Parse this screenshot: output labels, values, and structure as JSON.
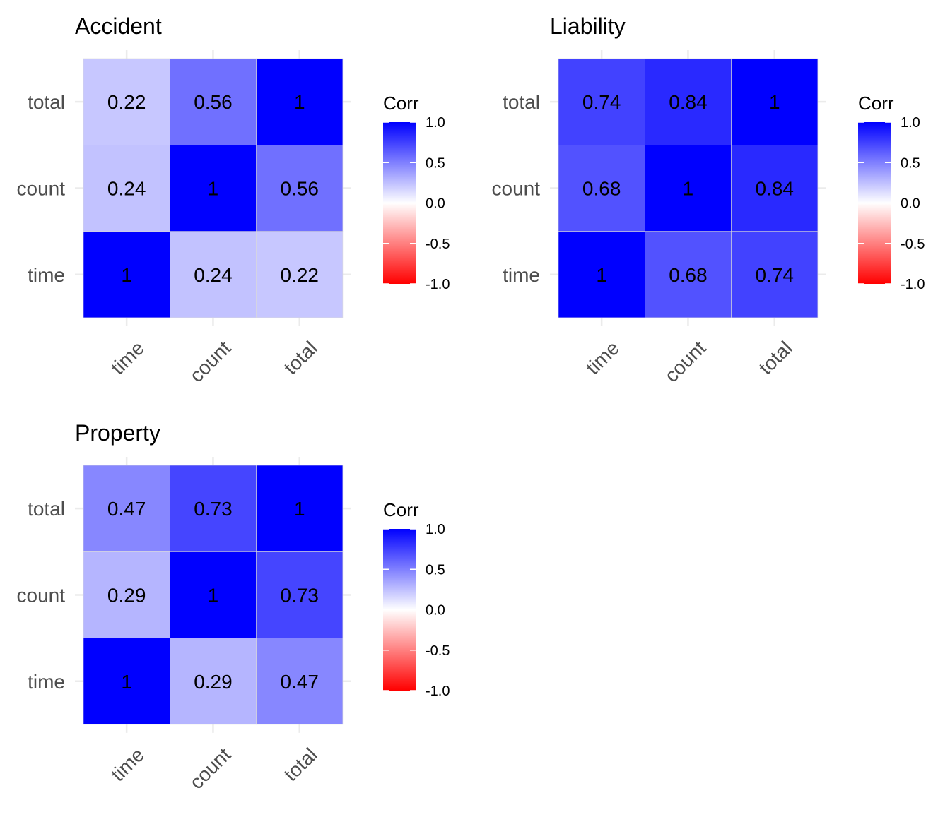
{
  "chart_data": [
    {
      "type": "heatmap",
      "title": "Accident",
      "x_categories": [
        "time",
        "count",
        "total"
      ],
      "y_categories": [
        "time",
        "count",
        "total"
      ],
      "values": [
        [
          1,
          0.24,
          0.22
        ],
        [
          0.24,
          1,
          0.56
        ],
        [
          0.22,
          0.56,
          1
        ]
      ],
      "labels": [
        [
          "1",
          "0.24",
          "0.22"
        ],
        [
          "0.24",
          "1",
          "0.56"
        ],
        [
          "0.22",
          "0.56",
          "1"
        ]
      ],
      "legend": {
        "title": "Corr",
        "ticks": [
          "1.0",
          "0.5",
          "0.0",
          "-0.5",
          "-1.0"
        ],
        "range": [
          -1,
          1
        ]
      }
    },
    {
      "type": "heatmap",
      "title": "Liability",
      "x_categories": [
        "time",
        "count",
        "total"
      ],
      "y_categories": [
        "time",
        "count",
        "total"
      ],
      "values": [
        [
          1,
          0.68,
          0.74
        ],
        [
          0.68,
          1,
          0.84
        ],
        [
          0.74,
          0.84,
          1
        ]
      ],
      "labels": [
        [
          "1",
          "0.68",
          "0.74"
        ],
        [
          "0.68",
          "1",
          "0.84"
        ],
        [
          "0.74",
          "0.84",
          "1"
        ]
      ],
      "legend": {
        "title": "Corr",
        "ticks": [
          "1.0",
          "0.5",
          "0.0",
          "-0.5",
          "-1.0"
        ],
        "range": [
          -1,
          1
        ]
      }
    },
    {
      "type": "heatmap",
      "title": "Property",
      "x_categories": [
        "time",
        "count",
        "total"
      ],
      "y_categories": [
        "time",
        "count",
        "total"
      ],
      "values": [
        [
          1,
          0.29,
          0.47
        ],
        [
          0.29,
          1,
          0.73
        ],
        [
          0.47,
          0.73,
          1
        ]
      ],
      "labels": [
        [
          "1",
          "0.29",
          "0.47"
        ],
        [
          "0.29",
          "1",
          "0.73"
        ],
        [
          "0.47",
          "0.73",
          "1"
        ]
      ],
      "legend": {
        "title": "Corr",
        "ticks": [
          "1.0",
          "0.5",
          "0.0",
          "-0.5",
          "-1.0"
        ],
        "range": [
          -1,
          1
        ]
      }
    }
  ],
  "colors": {
    "low": "#ff0000",
    "mid": "#ffffff",
    "high": "#0000ff"
  }
}
